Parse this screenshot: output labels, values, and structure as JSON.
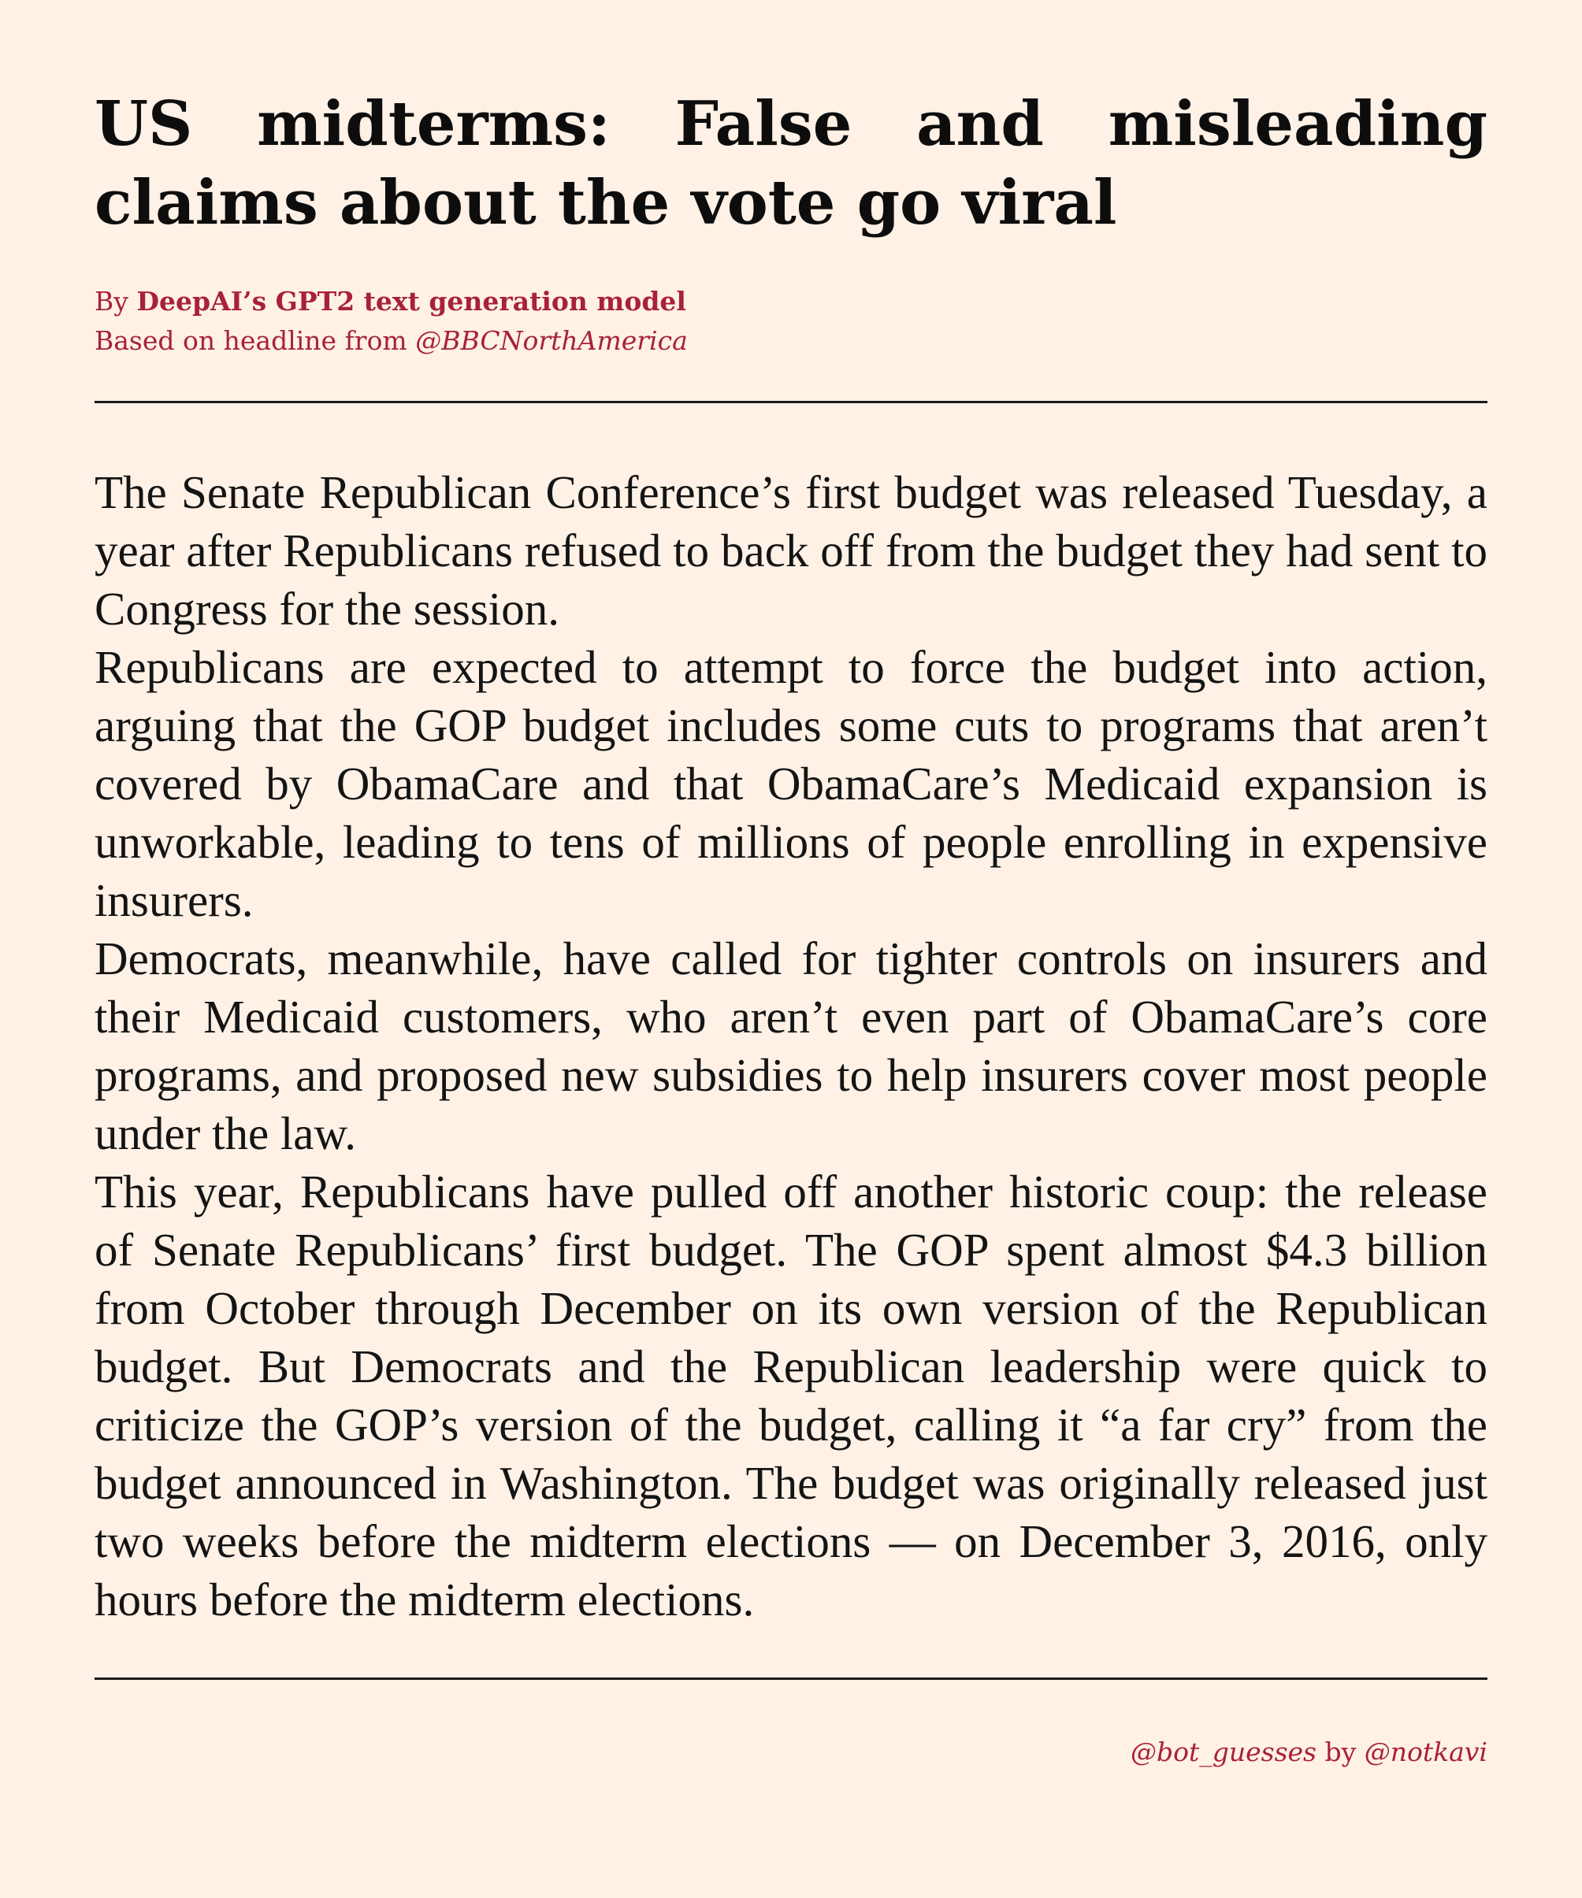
{
  "article": {
    "headline": "US midterms: False and misleading claims about the vote go viral",
    "byline": {
      "prefix": "By ",
      "author": "DeepAI’s GPT2 text generation model",
      "source_prefix": "Based on headline from ",
      "source_handle": "@BBCNorthAmerica"
    },
    "paragraphs": [
      "The Senate Republican Conference’s first budget was released Tuesday, a year after Republicans refused to back off from the budget they had sent to Congress for the session.",
      "Republicans are expected to attempt to force the budget into action, arguing that the GOP budget includes some cuts to programs that aren’t covered by ObamaCare and that ObamaCare’s Medicaid expansion is unworkable, leading to tens of millions of people enrolling in expensive insurers.",
      "Democrats, meanwhile, have called for tighter controls on insurers and their Medicaid customers, who aren’t even part of ObamaCare’s core programs, and proposed new subsidies to help insurers cover most people under the law.",
      "This year, Republicans have pulled off another historic coup:  the release of Senate Republicans’ first budget.  The GOP spent almost $4.3 billion from October through December on its own version of the Republican budget.  But Democrats and the Republican leadership were quick to criticize the GOP’s version of the budget, calling it “a far cry” from the budget announced in Washington. The budget was originally released just two weeks before the midterm elections — on December 3, 2016, only hours before the midterm elections."
    ]
  },
  "footer": {
    "bot_handle": "@bot_guesses",
    "by_text": " by ",
    "author_handle": "@notkavi"
  },
  "colors": {
    "background": "#fff1e6",
    "accent": "#a8213a",
    "text": "#111111"
  }
}
